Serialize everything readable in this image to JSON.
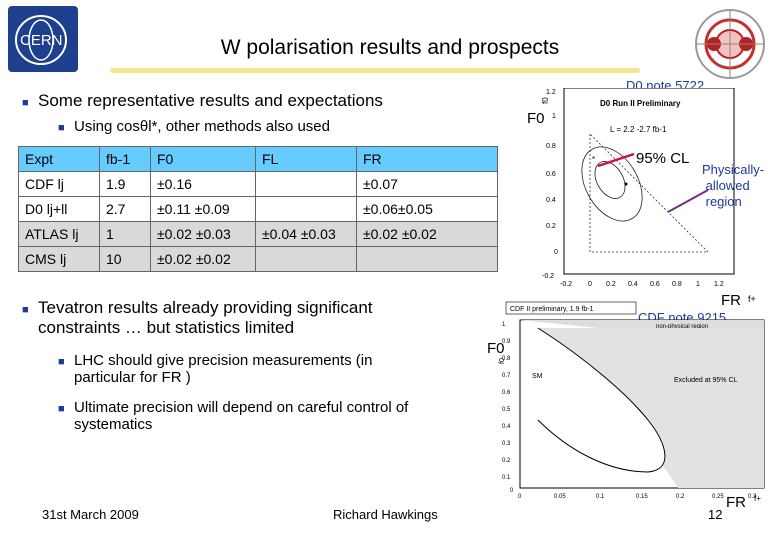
{
  "slide": {
    "title": "W polarisation results and prospects",
    "page_number": "12",
    "footer_date": "31st March 2009",
    "footer_author": "Richard Hawkings"
  },
  "bullets": {
    "main1": "Some representative results and expectations",
    "sub1": "Using cosθl*, other methods also used",
    "main2_line1": "Tevatron results already providing significant",
    "main2_line2": "constraints … but statistics limited",
    "sub2_line1": "LHC should give precision measurements (in",
    "sub2_line2": "particular for FR )",
    "sub3_line1": "Ultimate precision will depend on careful control of",
    "sub3_line2": "systematics"
  },
  "table": {
    "headers": [
      "Expt",
      "fb-1",
      "F0",
      "FL",
      "FR"
    ],
    "rows": [
      [
        "CDF lj",
        "1.9",
        "±0.16",
        "",
        "±0.07"
      ],
      [
        "D0 lj+ll",
        "2.7",
        "±0.11 ±0.09",
        "",
        "±0.06±0.05"
      ],
      [
        "ATLAS lj",
        "1",
        "±0.02 ±0.03",
        "±0.04 ±0.03",
        "±0.02 ±0.02"
      ],
      [
        "CMS lj",
        "10",
        "±0.02 ±0.02",
        "",
        ""
      ]
    ]
  },
  "d0_plot": {
    "note": "D0 note 5722",
    "y_label": "F0",
    "x_label": "FR",
    "axis_y_name": "f0",
    "axis_x_name": "f+",
    "legend_title": "D0 Run II Preliminary",
    "legend_lumi": "L = 2.2 -2.7 fb-1",
    "cl_label": "95% CL",
    "allowed_label_1": "Physically-",
    "allowed_label_2": "allowed",
    "allowed_label_3": "region",
    "y_ticks": [
      "1.2",
      "1",
      "0.8",
      "0.6",
      "0.4",
      "0.2",
      "0",
      "-0.2"
    ],
    "x_ticks": [
      "-0.2",
      "0",
      "0.2",
      "0.4",
      "0.6",
      "0.8",
      "1",
      "1.2"
    ]
  },
  "cdf_plot": {
    "note": "CDF note 9215",
    "y_label": "F0",
    "x_label": "FR",
    "axis_y_name": "f0",
    "axis_x_name": "f+",
    "header": "CDF II preliminary, 1.9 fb-1",
    "region_label": "non-physical region",
    "excluded_label": "Excluded at 95% CL",
    "sm_label": "SM",
    "y_ticks": [
      "1",
      "0.9",
      "0.8",
      "0.7",
      "0.6",
      "0.5",
      "0.4",
      "0.3",
      "0.2",
      "0.1",
      "0"
    ],
    "x_ticks": [
      "0",
      "0.05",
      "0.1",
      "0.15",
      "0.2",
      "0.25",
      "0.3"
    ]
  },
  "logos": {
    "left": "CERN"
  },
  "colors": {
    "table_header": "#66ccff",
    "table_gray": "#d9d9d9",
    "bullet": "#1f3a9e",
    "title_bar": "#f4e98a",
    "cl_arrow": "#d0103a",
    "allowed_arrow": "#7a2a8a"
  }
}
